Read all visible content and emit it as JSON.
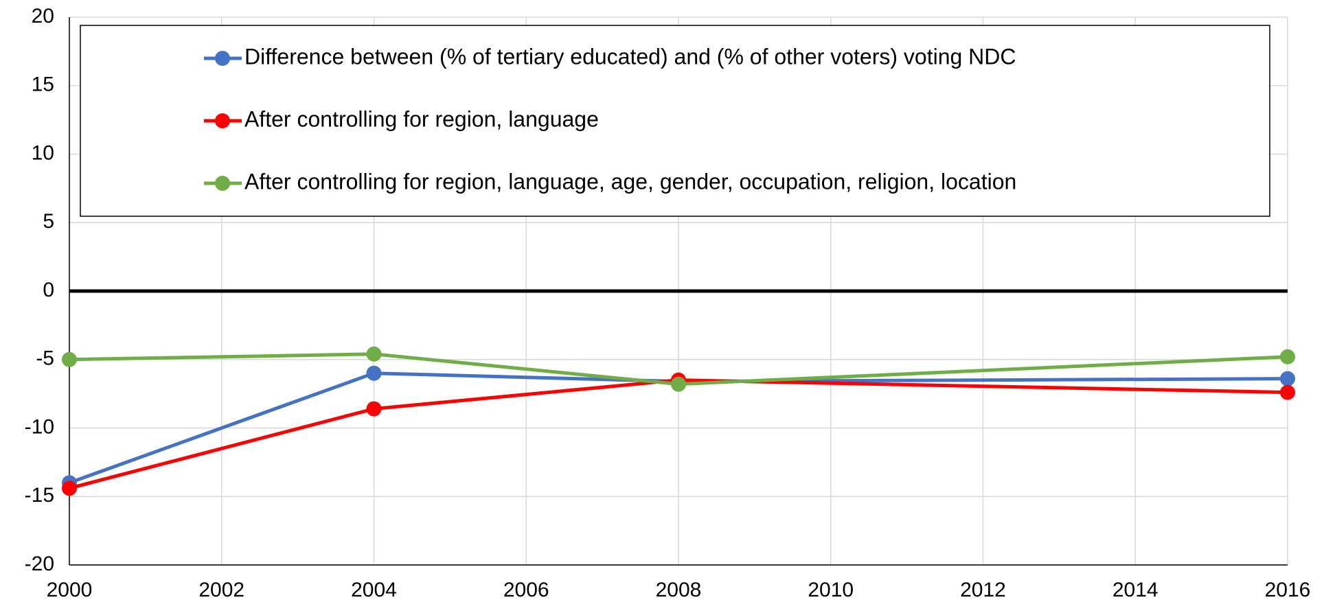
{
  "chart_data": {
    "type": "line",
    "x": [
      2000,
      2004,
      2008,
      2016
    ],
    "series": [
      {
        "name": "Difference between (% of tertiary educated) and (% of other voters) voting NDC",
        "color": "#4472c4",
        "values": [
          -14.0,
          -6.0,
          -6.6,
          -6.4
        ]
      },
      {
        "name": "After controlling for region, language",
        "color": "#ff0000",
        "values": [
          -14.4,
          -8.6,
          -6.5,
          -7.4
        ]
      },
      {
        "name": "After controlling for region, language, age, gender, occupation, religion, location",
        "color": "#70ad47",
        "values": [
          -5.0,
          -4.6,
          -6.8,
          -4.8
        ]
      }
    ],
    "xlim": [
      2000,
      2016
    ],
    "xticks": [
      2000,
      2002,
      2004,
      2006,
      2008,
      2010,
      2012,
      2014,
      2016
    ],
    "ylim": [
      -20,
      20
    ],
    "yticks": [
      -20,
      -15,
      -10,
      -5,
      0,
      5,
      10,
      15,
      20
    ],
    "grid": true,
    "legend": "top"
  }
}
